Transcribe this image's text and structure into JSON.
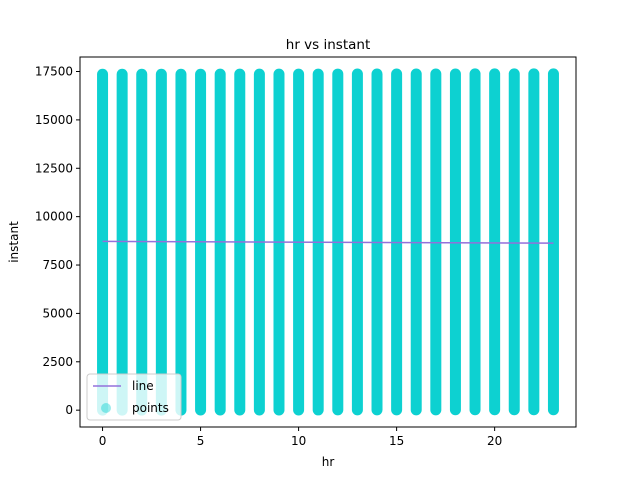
{
  "chart_data": {
    "type": "scatter",
    "title": "hr vs instant",
    "xlabel": "hr",
    "ylabel": "instant",
    "xlim": [
      -1.15,
      24.15
    ],
    "ylim": [
      -870,
      18250
    ],
    "xticks": [
      0,
      5,
      10,
      15,
      20
    ],
    "yticks": [
      0,
      2500,
      5000,
      7500,
      10000,
      12500,
      15000,
      17500
    ],
    "grid": false,
    "legend_position": "lower-left",
    "colors": {
      "points": "#00cfcf",
      "line": "#9370db"
    },
    "series": [
      {
        "name": "points",
        "kind": "scatter",
        "x": [
          0,
          1,
          2,
          3,
          4,
          5,
          6,
          7,
          8,
          9,
          10,
          11,
          12,
          13,
          14,
          15,
          16,
          17,
          18,
          19,
          20,
          21,
          22,
          23
        ],
        "y_min": [
          1,
          2,
          3,
          4,
          5,
          6,
          7,
          8,
          9,
          10,
          11,
          12,
          13,
          14,
          15,
          16,
          17,
          18,
          19,
          20,
          21,
          22,
          23,
          24
        ],
        "y_max": [
          17356,
          17357,
          17358,
          17359,
          17360,
          17361,
          17362,
          17363,
          17364,
          17365,
          17366,
          17367,
          17368,
          17369,
          17370,
          17371,
          17372,
          17373,
          17374,
          17375,
          17376,
          17377,
          17378,
          17379
        ]
      },
      {
        "name": "line",
        "kind": "line",
        "x": [
          0,
          23
        ],
        "y": [
          8720,
          8630
        ]
      }
    ]
  }
}
